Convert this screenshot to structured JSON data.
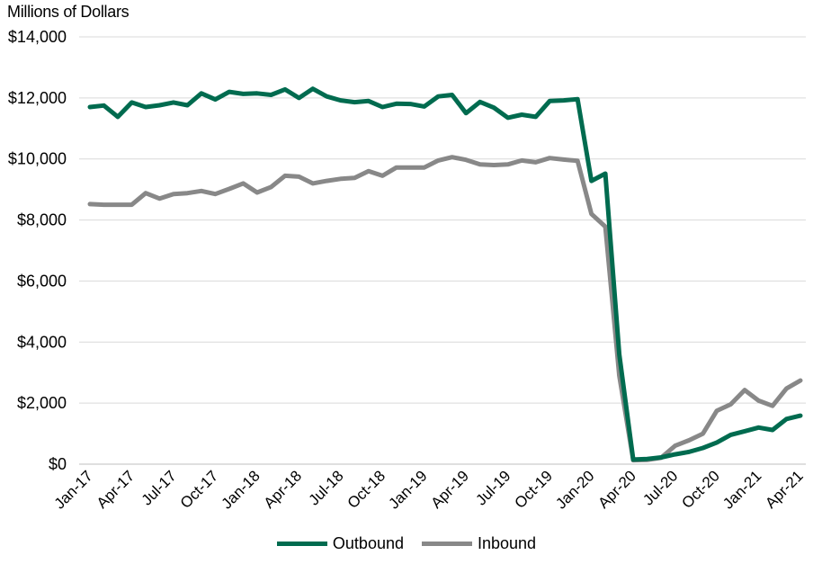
{
  "chart_data": {
    "type": "line",
    "ylabel": "Millions of Dollars",
    "xlabel": "",
    "ylim": [
      0,
      14000
    ],
    "yticks": [
      0,
      2000,
      4000,
      6000,
      8000,
      10000,
      12000,
      14000
    ],
    "ytick_labels": [
      "$0",
      "$2,000",
      "$4,000",
      "$6,000",
      "$8,000",
      "$10,000",
      "$12,000",
      "$14,000"
    ],
    "grid": "horizontal",
    "legend_position": "bottom",
    "x": [
      "Jan-17",
      "Feb-17",
      "Mar-17",
      "Apr-17",
      "May-17",
      "Jun-17",
      "Jul-17",
      "Aug-17",
      "Sep-17",
      "Oct-17",
      "Nov-17",
      "Dec-17",
      "Jan-18",
      "Feb-18",
      "Mar-18",
      "Apr-18",
      "May-18",
      "Jun-18",
      "Jul-18",
      "Aug-18",
      "Sep-18",
      "Oct-18",
      "Nov-18",
      "Dec-18",
      "Jan-19",
      "Feb-19",
      "Mar-19",
      "Apr-19",
      "May-19",
      "Jun-19",
      "Jul-19",
      "Aug-19",
      "Sep-19",
      "Oct-19",
      "Nov-19",
      "Dec-19",
      "Jan-20",
      "Feb-20",
      "Mar-20",
      "Apr-20",
      "May-20",
      "Jun-20",
      "Jul-20",
      "Aug-20",
      "Sep-20",
      "Oct-20",
      "Nov-20",
      "Dec-20",
      "Jan-21",
      "Feb-21",
      "Mar-21",
      "Apr-21"
    ],
    "xtick_labels": [
      "Jan-17",
      "Apr-17",
      "Jul-17",
      "Oct-17",
      "Jan-18",
      "Apr-18",
      "Jul-18",
      "Oct-18",
      "Jan-19",
      "Apr-19",
      "Jul-19",
      "Oct-19",
      "Jan-20",
      "Apr-20",
      "Jul-20",
      "Oct-20",
      "Jan-21",
      "Apr-21"
    ],
    "series": [
      {
        "name": "Outbound",
        "color": "#006B4F",
        "values": [
          11700,
          11750,
          11380,
          11850,
          11700,
          11760,
          11850,
          11760,
          12150,
          11950,
          12200,
          12130,
          12150,
          12100,
          12280,
          12000,
          12300,
          12050,
          11920,
          11860,
          11900,
          11700,
          11810,
          11800,
          11720,
          12050,
          12100,
          11500,
          11870,
          11680,
          11350,
          11450,
          11380,
          11900,
          11920,
          11960,
          9280,
          9520,
          3600,
          150,
          170,
          220,
          320,
          400,
          530,
          710,
          960,
          1080,
          1200,
          1120,
          1480,
          1590
        ]
      },
      {
        "name": "Inbound",
        "color": "#888888",
        "values": [
          8520,
          8500,
          8500,
          8500,
          8880,
          8700,
          8850,
          8880,
          8950,
          8850,
          9020,
          9200,
          8900,
          9080,
          9450,
          9420,
          9200,
          9280,
          9350,
          9380,
          9600,
          9450,
          9720,
          9720,
          9720,
          9950,
          10060,
          9970,
          9820,
          9800,
          9820,
          9950,
          9890,
          10030,
          9980,
          9940,
          8200,
          7780,
          2900,
          130,
          140,
          210,
          600,
          780,
          1000,
          1750,
          1960,
          2430,
          2080,
          1910,
          2480,
          2740
        ]
      }
    ]
  }
}
